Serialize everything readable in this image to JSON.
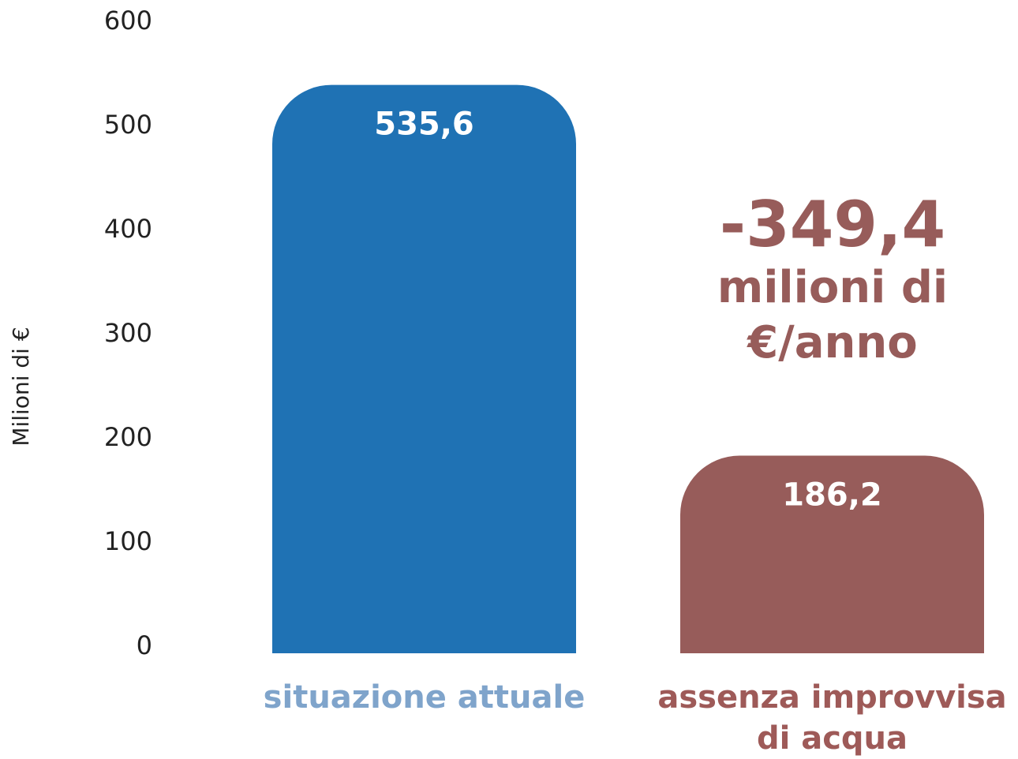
{
  "chart_data": {
    "type": "bar",
    "y_axis_label": "Milioni di €",
    "categories": [
      "situazione attuale",
      "assenza improvvisa di acqua"
    ],
    "values": [
      535.6,
      186.2
    ],
    "value_labels": [
      "535,6",
      "186,2"
    ],
    "colors": [
      "#1f72b4",
      "#975c5a"
    ],
    "category_colors": [
      "#7fa4cb",
      "#9e5a58"
    ],
    "annotation": {
      "value": "-349,4",
      "text": "milioni di €/anno",
      "color": "#975c5a"
    },
    "ylim": [
      0,
      600
    ],
    "yticks": [
      0,
      100,
      200,
      300,
      400,
      500,
      600
    ],
    "grid": false
  }
}
